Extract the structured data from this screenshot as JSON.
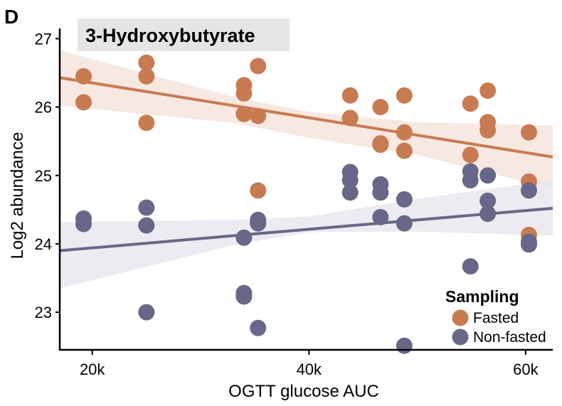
{
  "panel_label": "D",
  "chart_data": {
    "type": "scatter",
    "title": "3-Hydroxybutyrate",
    "xlabel": "OGTT glucose AUC",
    "ylabel": "Log2 abundance",
    "xlim": [
      17000,
      62500
    ],
    "ylim": [
      22.45,
      27.15
    ],
    "x_ticks": [
      20000,
      40000,
      60000
    ],
    "x_tick_labels": [
      "20k",
      "40k",
      "60k"
    ],
    "y_ticks": [
      23,
      24,
      25,
      26,
      27
    ],
    "y_tick_labels": [
      "23",
      "24",
      "25",
      "26",
      "27"
    ],
    "grid": false,
    "legend": {
      "title": "Sampling",
      "position": "bottom-right"
    },
    "series": [
      {
        "name": "Fasted",
        "color": "#c87b51",
        "band_color": "#f6e4dc",
        "points": [
          [
            19200,
            26.45
          ],
          [
            19200,
            26.07
          ],
          [
            25000,
            26.65
          ],
          [
            25000,
            26.45
          ],
          [
            25000,
            25.77
          ],
          [
            34000,
            26.32
          ],
          [
            34000,
            26.2
          ],
          [
            34000,
            25.9
          ],
          [
            35300,
            26.6
          ],
          [
            35300,
            25.87
          ],
          [
            35300,
            24.78
          ],
          [
            43800,
            26.17
          ],
          [
            43800,
            25.84
          ],
          [
            46600,
            26.0
          ],
          [
            46600,
            25.47
          ],
          [
            46600,
            25.45
          ],
          [
            48800,
            26.17
          ],
          [
            48800,
            25.63
          ],
          [
            48800,
            25.36
          ],
          [
            54900,
            26.05
          ],
          [
            54900,
            25.3
          ],
          [
            56500,
            26.24
          ],
          [
            56500,
            25.78
          ],
          [
            56500,
            25.66
          ],
          [
            60300,
            25.63
          ],
          [
            60300,
            24.91
          ],
          [
            60300,
            24.13
          ]
        ],
        "fit": {
          "x": [
            17000,
            62500
          ],
          "y": [
            26.43,
            25.27
          ]
        },
        "ci_upper": [
          [
            17000,
            26.83
          ],
          [
            33000,
            26.15
          ],
          [
            40000,
            25.93
          ],
          [
            50000,
            25.78
          ],
          [
            62500,
            25.73
          ]
        ],
        "ci_lower": [
          [
            17000,
            26.02
          ],
          [
            33000,
            25.77
          ],
          [
            40000,
            25.55
          ],
          [
            50000,
            25.3
          ],
          [
            62500,
            24.8
          ]
        ]
      },
      {
        "name": "Non-fasted",
        "color": "#676887",
        "band_color": "#e8e8ee",
        "points": [
          [
            19200,
            24.37
          ],
          [
            19200,
            24.29
          ],
          [
            25000,
            24.53
          ],
          [
            25000,
            24.27
          ],
          [
            25000,
            23.0
          ],
          [
            34000,
            24.09
          ],
          [
            34000,
            23.28
          ],
          [
            34000,
            23.23
          ],
          [
            35300,
            24.35
          ],
          [
            35300,
            24.3
          ],
          [
            35300,
            22.77
          ],
          [
            43800,
            25.05
          ],
          [
            43800,
            24.93
          ],
          [
            43800,
            24.75
          ],
          [
            46600,
            24.87
          ],
          [
            46600,
            24.75
          ],
          [
            46600,
            24.39
          ],
          [
            48800,
            24.65
          ],
          [
            48800,
            24.3
          ],
          [
            48800,
            22.51
          ],
          [
            54900,
            25.06
          ],
          [
            54900,
            24.93
          ],
          [
            54900,
            23.67
          ],
          [
            56500,
            25.0
          ],
          [
            56500,
            24.63
          ],
          [
            56500,
            24.44
          ],
          [
            60300,
            24.78
          ],
          [
            60300,
            24.03
          ],
          [
            60300,
            23.99
          ]
        ],
        "fit": {
          "x": [
            17000,
            62500
          ],
          "y": [
            23.9,
            24.52
          ]
        },
        "ci_upper": [
          [
            17000,
            24.32
          ],
          [
            33000,
            24.35
          ],
          [
            40000,
            24.4
          ],
          [
            50000,
            24.66
          ],
          [
            62500,
            24.93
          ]
        ],
        "ci_lower": [
          [
            17000,
            23.35
          ],
          [
            33000,
            23.98
          ],
          [
            40000,
            24.17
          ],
          [
            50000,
            24.18
          ],
          [
            62500,
            24.12
          ]
        ]
      }
    ]
  }
}
